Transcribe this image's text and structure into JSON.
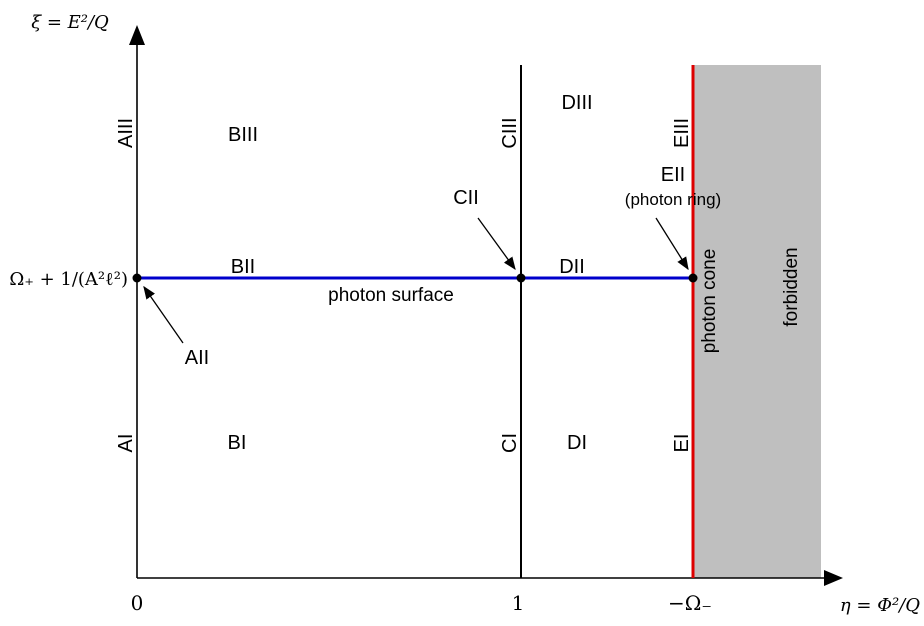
{
  "axes": {
    "x_label": "η = Φ²/Q",
    "y_label": "ξ = E²/Q",
    "x_ticks": [
      "0",
      "1",
      "−Ω₋"
    ],
    "y_tick": "Ω₊ + 1/(A²ℓ²)"
  },
  "regions": {
    "AI": "AI",
    "AIII": "AIII",
    "BI": "BI",
    "BII": "BII",
    "BIII": "BIII",
    "CI": "CI",
    "CIII": "CIII",
    "DI": "DI",
    "DII": "DII",
    "DIII": "DIII",
    "EI": "EI",
    "EIII": "EIII"
  },
  "callouts": {
    "AII": "AII",
    "CII": "CII",
    "EII": "EII",
    "EII_note": "(photon ring)"
  },
  "labels": {
    "photon_surface": "photon surface",
    "photon_cone": "photon cone",
    "forbidden": "forbidden"
  },
  "colors": {
    "photon_surface": "#0000cc",
    "photon_cone": "#dd0000",
    "forbidden_fill": "#bfbfbf",
    "axis": "#000000"
  }
}
